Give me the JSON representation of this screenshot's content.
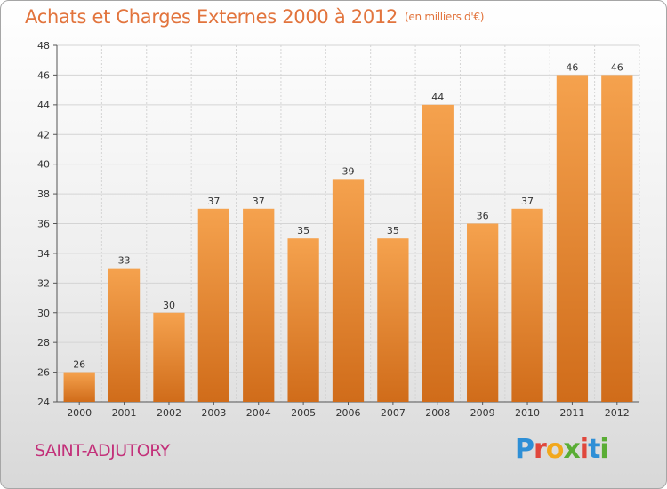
{
  "header": {
    "title": "Achats et Charges Externes 2000 à 2012",
    "subtitle": "(en milliers d'€)"
  },
  "place_name": "SAINT-ADJUTORY",
  "logo": {
    "text": "Proxiti",
    "letters": [
      "P",
      "r",
      "o",
      "x",
      "i",
      "t",
      "i"
    ],
    "letter_colors": [
      "#2e8fd6",
      "#e0473c",
      "#f2a81c",
      "#5aad35",
      "#e0473c",
      "#2e8fd6",
      "#5aad35"
    ]
  },
  "colors": {
    "bar_top": "#f5a24e",
    "bar_bottom": "#d06c1a",
    "title": "#e2743d",
    "place": "#c3317a"
  },
  "chart_data": {
    "type": "bar",
    "title": "Achats et Charges Externes 2000 à 2012",
    "subtitle": "(en milliers d'€)",
    "categories": [
      "2000",
      "2001",
      "2002",
      "2003",
      "2004",
      "2005",
      "2006",
      "2007",
      "2008",
      "2009",
      "2010",
      "2011",
      "2012"
    ],
    "values": [
      26,
      33,
      30,
      37,
      37,
      35,
      39,
      35,
      44,
      36,
      37,
      46,
      46
    ],
    "ylim": [
      24,
      48
    ],
    "yticks": [
      24,
      26,
      28,
      30,
      32,
      34,
      36,
      38,
      40,
      42,
      44,
      46,
      48
    ],
    "grid": true,
    "data_labels": true,
    "xlabel": "",
    "ylabel": ""
  }
}
